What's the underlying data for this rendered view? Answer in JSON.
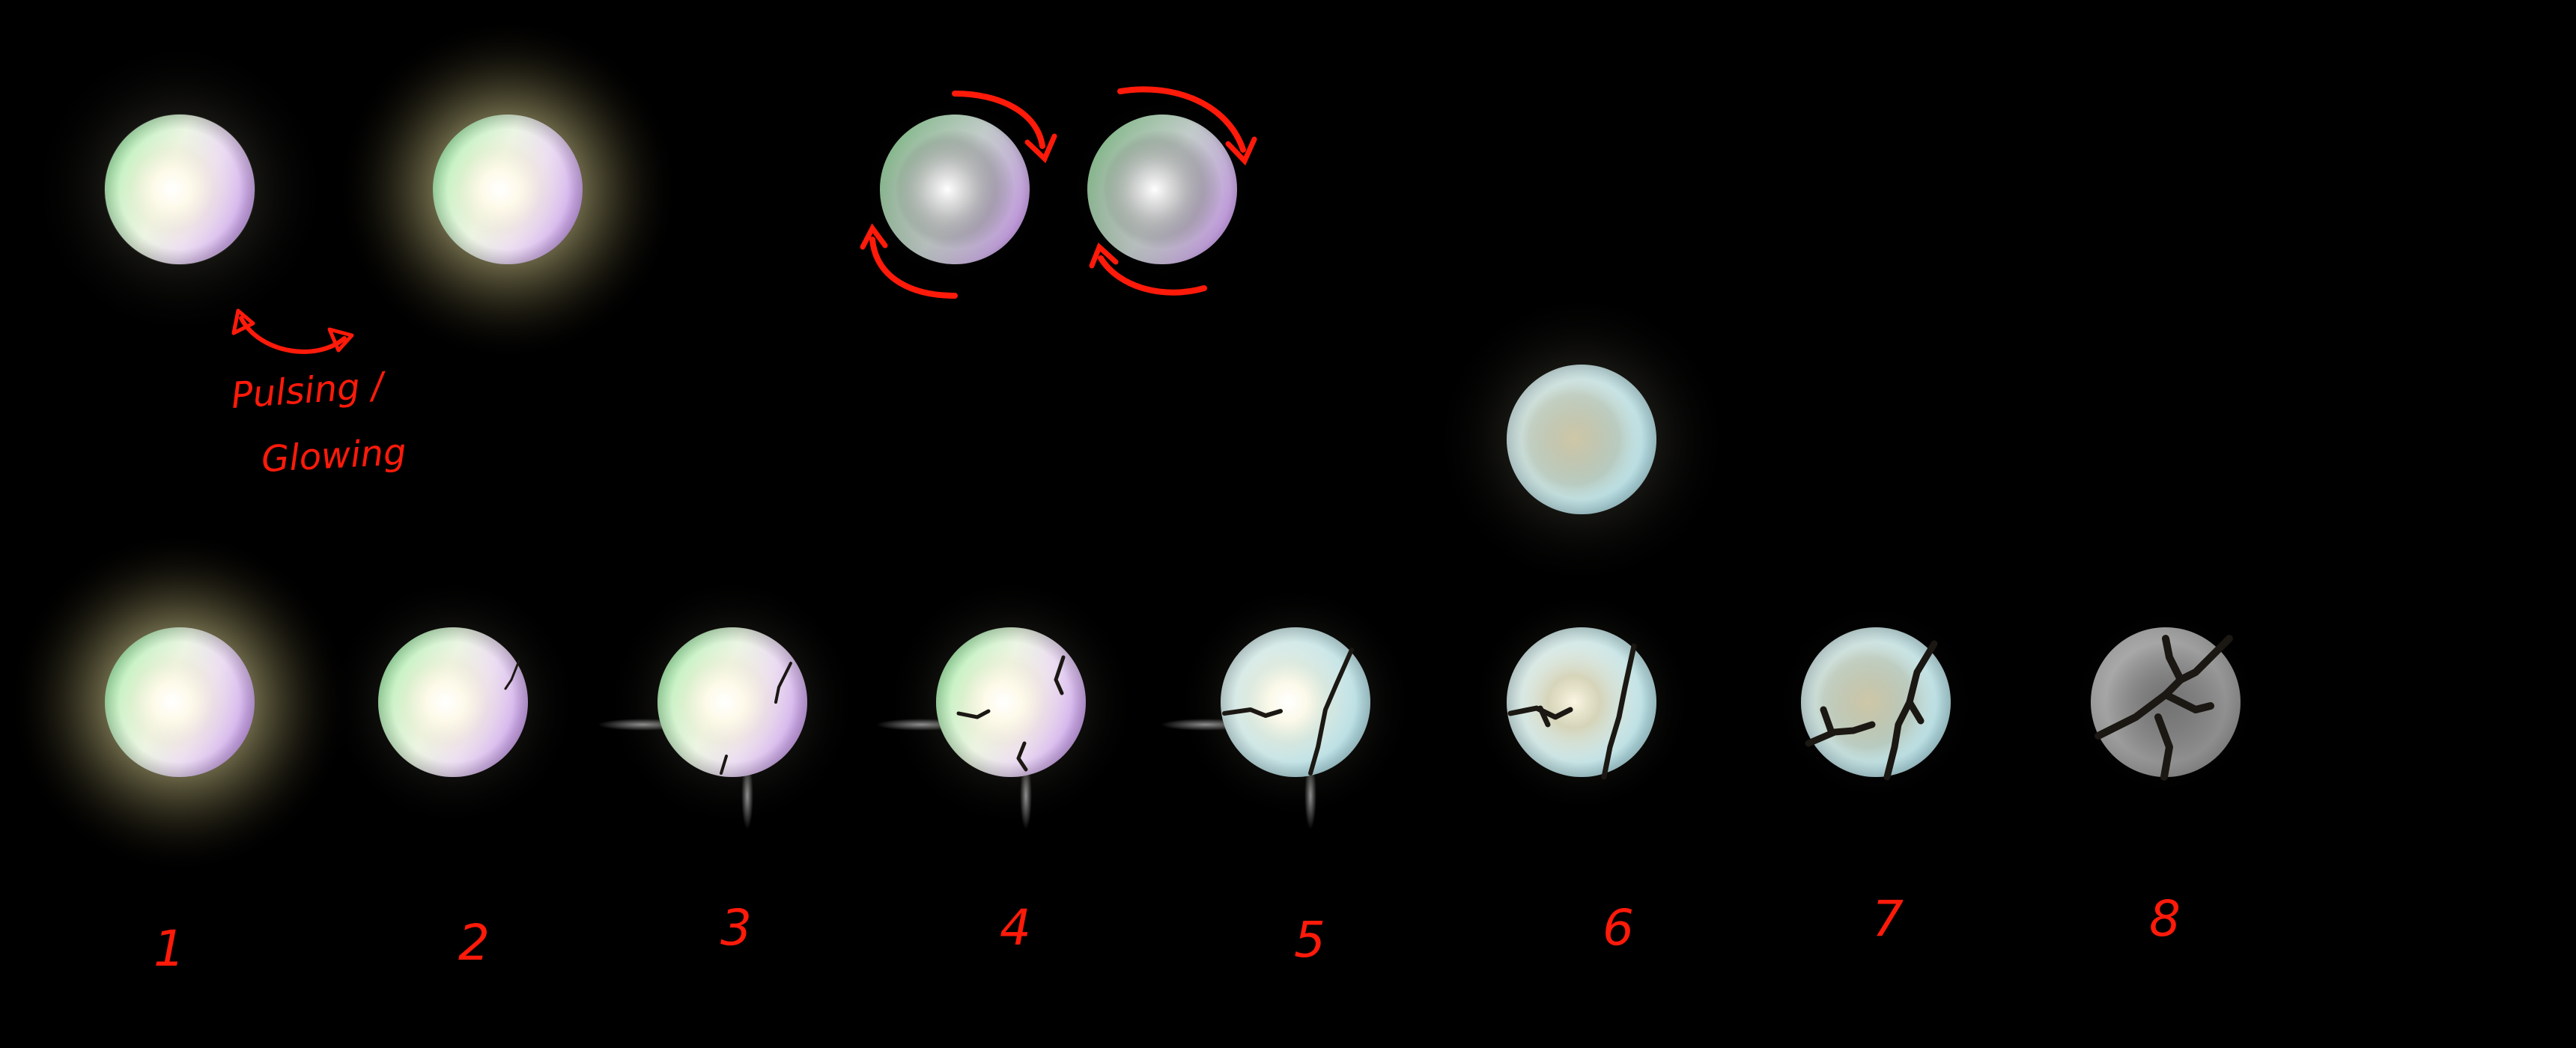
{
  "canvas": {
    "background": "#000000"
  },
  "colors": {
    "annotation": "#ff1a0a",
    "glow": "#d9cf90",
    "crack": "#1b1712",
    "orb_core": "#ffffff"
  },
  "annotations": {
    "pulsing_line1": "Pulsing /",
    "pulsing_line2": "Glowing"
  },
  "frame_numbers": [
    "1",
    "2",
    "3",
    "4",
    "5",
    "6",
    "7",
    "8"
  ]
}
